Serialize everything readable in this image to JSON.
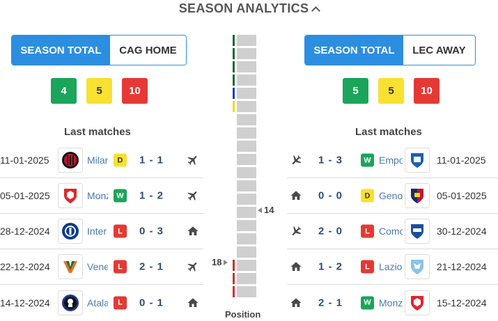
{
  "header": {
    "title": "SEASON ANALYTICS",
    "collapse_icon": "chevron-up-icon"
  },
  "colors": {
    "accent": "#2c8ee0",
    "win": "#1aa55a",
    "draw": "#f8e130",
    "loss": "#e53935",
    "position_bar": "#cfcfcf"
  },
  "left": {
    "tabs": {
      "active": "SEASON TOTAL",
      "inactive": "CAG HOME"
    },
    "counts": {
      "wins": "4",
      "draws": "5",
      "losses": "10"
    },
    "last_matches_title": "Last matches",
    "matches": [
      {
        "date": "11-01-2025",
        "team": "Milan",
        "crest_icon": "ac-milan-crest-icon",
        "result": "D",
        "score": "1 - 1",
        "venue_icon": "plane-icon"
      },
      {
        "date": "05-01-2025",
        "team": "Monza",
        "crest_icon": "monza-crest-icon",
        "result": "W",
        "score": "1 - 2",
        "venue_icon": "plane-icon"
      },
      {
        "date": "28-12-2024",
        "team": "Inter",
        "crest_icon": "inter-crest-icon",
        "result": "L",
        "score": "0 - 3",
        "venue_icon": "home-icon"
      },
      {
        "date": "22-12-2024",
        "team": "Venezia",
        "crest_icon": "venezia-crest-icon",
        "result": "L",
        "score": "2 - 1",
        "venue_icon": "plane-icon"
      },
      {
        "date": "14-12-2024",
        "team": "Atalanta",
        "crest_icon": "atalanta-crest-icon",
        "result": "L",
        "score": "0 - 1",
        "venue_icon": "home-icon"
      }
    ]
  },
  "right": {
    "tabs": {
      "active": "SEASON TOTAL",
      "inactive": "LEC AWAY"
    },
    "counts": {
      "wins": "5",
      "draws": "5",
      "losses": "10"
    },
    "last_matches_title": "Last matches",
    "matches": [
      {
        "date": "11-01-2025",
        "team": "Empoli",
        "crest_icon": "empoli-crest-icon",
        "result": "W",
        "score": "1 - 3",
        "venue_icon": "plane-icon"
      },
      {
        "date": "05-01-2025",
        "team": "Genoa",
        "crest_icon": "genoa-crest-icon",
        "result": "D",
        "score": "0 - 0",
        "venue_icon": "home-icon"
      },
      {
        "date": "30-12-2024",
        "team": "Como",
        "crest_icon": "como-crest-icon",
        "result": "L",
        "score": "2 - 0",
        "venue_icon": "plane-icon"
      },
      {
        "date": "21-12-2024",
        "team": "Lazio",
        "crest_icon": "lazio-crest-icon",
        "result": "L",
        "score": "1 - 2",
        "venue_icon": "home-icon"
      },
      {
        "date": "15-12-2024",
        "team": "Monza",
        "crest_icon": "monza-crest-icon",
        "result": "W",
        "score": "2 - 1",
        "venue_icon": "home-icon"
      }
    ]
  },
  "position": {
    "label": "Position",
    "left_team_position": "18",
    "right_team_position": "14",
    "slots": 20,
    "zone_colors": [
      "#1a6b2a",
      "#1a6b2a",
      "#1a6b2a",
      "#1a6b2a",
      "#1f3fbf",
      "#f5d90a",
      "",
      "",
      "",
      "",
      "",
      "",
      "",
      "",
      "",
      "",
      "",
      "#d32f2f",
      "#d32f2f",
      "#d32f2f"
    ]
  }
}
